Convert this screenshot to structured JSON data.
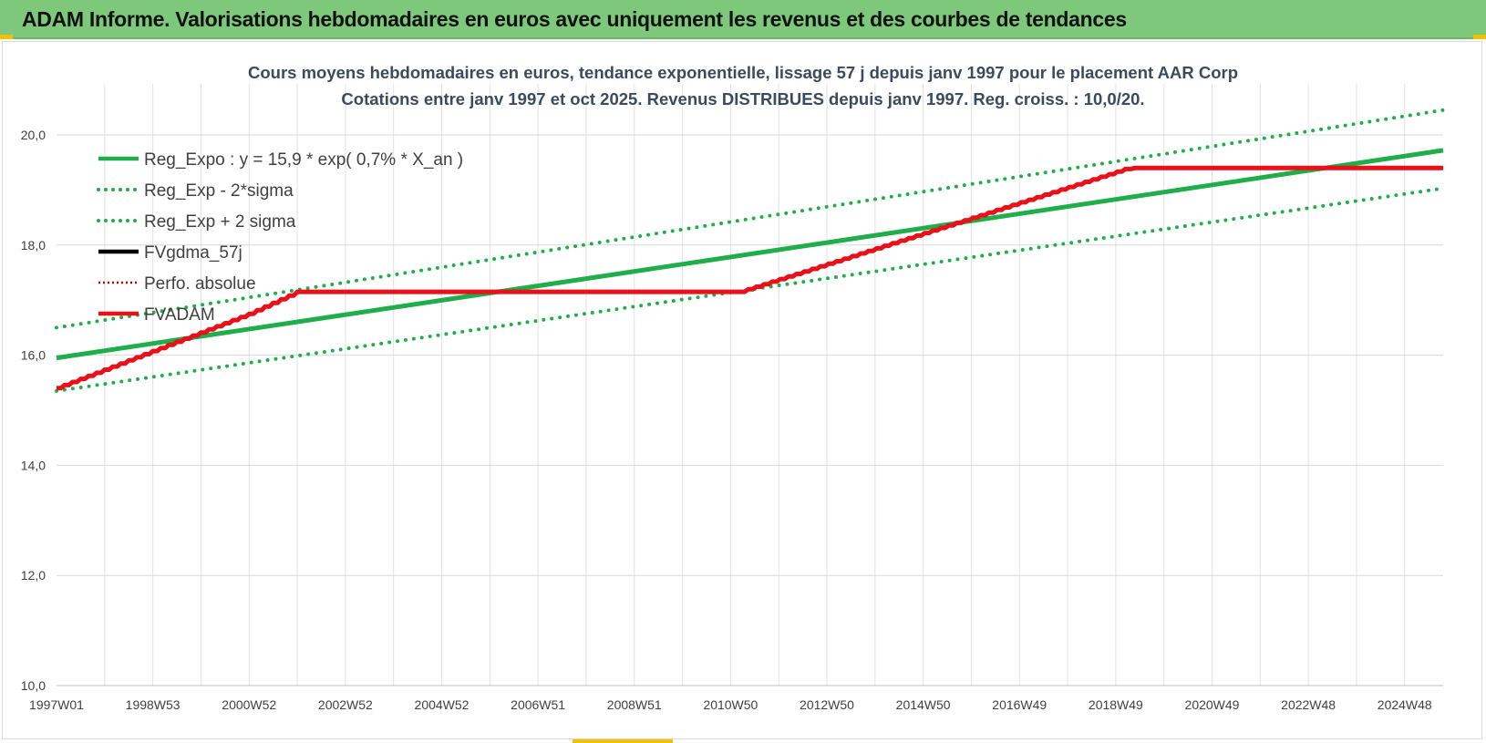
{
  "banner": {
    "title": "ADAM Informe. Valorisations hebdomadaires en euros avec uniquement les revenus et des courbes de tendances"
  },
  "colors": {
    "banner_bg": "#7dc87a",
    "corner_accent": "#f2c200",
    "regression_green": "#1fae4a",
    "fvadam_red": "#e8111a",
    "perfo_red": "#c00000",
    "fvgdma_black": "#000000",
    "grid": "#d9d9d9"
  },
  "chart_data": {
    "type": "line",
    "title_lines": [
      "Cours moyens hebdomadaires en euros, tendance exponentielle, lissage 57 j depuis janv 1997 pour le placement AAR Corp",
      "Cotations entre janv 1997 et oct 2025. Revenus DISTRIBUES depuis janv 1997.  Reg. croiss. : 10,0/20."
    ],
    "ylim": [
      10,
      20
    ],
    "y_ticks": [
      "10,0",
      "12,0",
      "14,0",
      "16,0",
      "18,0",
      "20,0"
    ],
    "y_tick_values": [
      10,
      12,
      14,
      16,
      18,
      20
    ],
    "xlim": [
      1997.0,
      2025.8
    ],
    "x_ticks": [
      "1997W01",
      "1998W53",
      "2000W52",
      "2002W52",
      "2004W52",
      "2006W51",
      "2008W51",
      "2010W50",
      "2012W50",
      "2014W50",
      "2016W49",
      "2018W49",
      "2020W49",
      "2022W48",
      "2024W48"
    ],
    "x_tick_values": [
      1997.0,
      1999.0,
      2001.0,
      2003.0,
      2005.0,
      2007.0,
      2009.0,
      2011.0,
      2013.0,
      2015.0,
      2017.0,
      2019.0,
      2021.0,
      2023.0,
      2025.0
    ],
    "grid": true,
    "legend_position": "top-left",
    "series": [
      {
        "name": "Reg_Expo : y = 15,9 * exp( 0,7% *  X_an )",
        "style": "solid",
        "color": "#1fae4a",
        "x": [
          1997.0,
          2025.8
        ],
        "y": [
          15.95,
          19.72
        ]
      },
      {
        "name": "Reg_Exp - 2*sigma",
        "style": "dotted",
        "color": "#1fae4a",
        "x": [
          1997.0,
          2025.8
        ],
        "y": [
          15.35,
          19.03
        ]
      },
      {
        "name": "Reg_Exp + 2 sigma",
        "style": "dotted",
        "color": "#1fae4a",
        "x": [
          1997.0,
          2025.8
        ],
        "y": [
          16.5,
          20.45
        ]
      },
      {
        "name": "FVgdma_57j",
        "style": "solid",
        "color": "#000000",
        "x": [],
        "y": []
      },
      {
        "name": "Perfo. absolue",
        "style": "dotted",
        "color": "#c00000",
        "x": [],
        "y": []
      },
      {
        "name": "FVADAM",
        "style": "solid",
        "color": "#e8111a",
        "x": [
          1997.0,
          2001.0,
          2002.0,
          2011.2,
          2019.2,
          2019.4,
          2025.8
        ],
        "y": [
          15.4,
          16.75,
          17.15,
          17.15,
          19.38,
          19.4,
          19.4
        ]
      }
    ]
  }
}
